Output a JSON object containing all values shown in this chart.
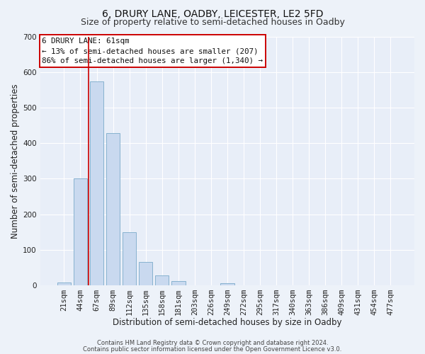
{
  "title": "6, DRURY LANE, OADBY, LEICESTER, LE2 5FD",
  "subtitle": "Size of property relative to semi-detached houses in Oadby",
  "xlabel": "Distribution of semi-detached houses by size in Oadby",
  "ylabel": "Number of semi-detached properties",
  "bar_labels": [
    "21sqm",
    "44sqm",
    "67sqm",
    "89sqm",
    "112sqm",
    "135sqm",
    "158sqm",
    "181sqm",
    "203sqm",
    "226sqm",
    "249sqm",
    "272sqm",
    "295sqm",
    "317sqm",
    "340sqm",
    "363sqm",
    "386sqm",
    "409sqm",
    "431sqm",
    "454sqm",
    "477sqm"
  ],
  "bar_values": [
    8,
    300,
    573,
    428,
    150,
    65,
    28,
    12,
    0,
    0,
    5,
    0,
    0,
    0,
    0,
    0,
    0,
    0,
    0,
    0,
    0
  ],
  "bar_color": "#c9d9ef",
  "bar_edge_color": "#7aaaca",
  "vline_color": "#cc0000",
  "vline_pos": 1.5,
  "ylim": [
    0,
    700
  ],
  "yticks": [
    0,
    100,
    200,
    300,
    400,
    500,
    600,
    700
  ],
  "annotation_title": "6 DRURY LANE: 61sqm",
  "annotation_line1": "← 13% of semi-detached houses are smaller (207)",
  "annotation_line2": "86% of semi-detached houses are larger (1,340) →",
  "annotation_box_color": "#ffffff",
  "annotation_box_edge": "#cc0000",
  "footer1": "Contains HM Land Registry data © Crown copyright and database right 2024.",
  "footer2": "Contains public sector information licensed under the Open Government Licence v3.0.",
  "bg_color": "#edf2f9",
  "plot_bg_color": "#e8eef8",
  "grid_color": "#ffffff",
  "title_fontsize": 10,
  "subtitle_fontsize": 9,
  "axis_label_fontsize": 8.5,
  "tick_fontsize": 7.5,
  "annotation_fontsize": 7.8,
  "footer_fontsize": 6
}
